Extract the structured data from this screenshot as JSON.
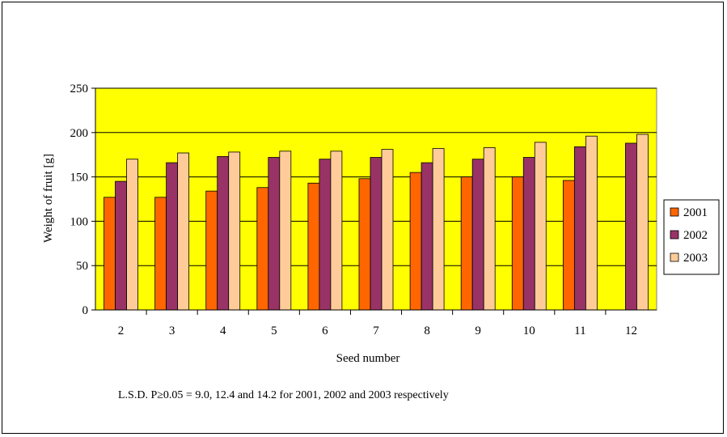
{
  "chart_data": {
    "type": "bar",
    "title": "",
    "xlabel": "Seed number",
    "ylabel": "Weight of fruit [g]",
    "ylim": [
      0,
      250
    ],
    "yticks": [
      "0",
      "50",
      "100",
      "150",
      "200",
      "250"
    ],
    "categories": [
      "2",
      "3",
      "4",
      "5",
      "6",
      "7",
      "8",
      "9",
      "10",
      "11",
      "12"
    ],
    "series": [
      {
        "name": "2001",
        "values": [
          127,
          127,
          134,
          138,
          143,
          148,
          155,
          150,
          150,
          146,
          null
        ]
      },
      {
        "name": "2002",
        "values": [
          145,
          166,
          173,
          172,
          170,
          172,
          166,
          170,
          172,
          184,
          188
        ]
      },
      {
        "name": "2003",
        "values": [
          170,
          177,
          178,
          179,
          179,
          181,
          182,
          183,
          189,
          196,
          198
        ]
      }
    ],
    "grid": true,
    "legend_position": "right",
    "plot_background": "#FFFF00",
    "colors": {
      "2001": "#FF6600",
      "2002": "#993366",
      "2003": "#FFCC99"
    },
    "annotation": "L.S.D. P≥0.05 = 9.0, 12.4 and 14.2 for 2001, 2002 and 2003 respectively"
  }
}
